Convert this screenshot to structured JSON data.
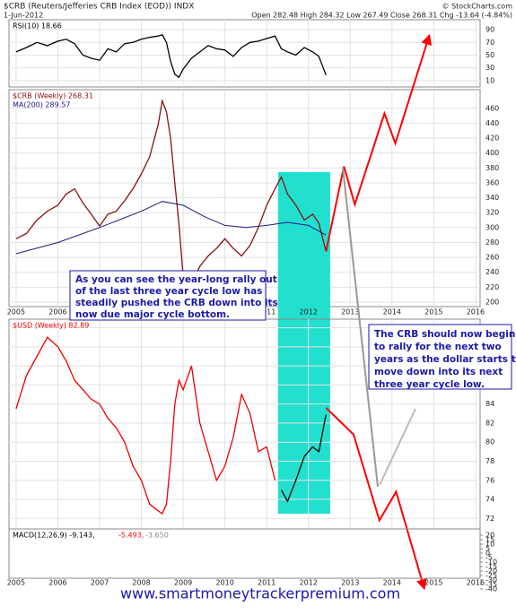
{
  "header": {
    "title": "$CRB (Reuters/Jefferies CRB Index (EOD)) INDX",
    "source": "© StockCharts.com",
    "date": "1-Jun-2012",
    "quote": "Open 282.48 High 284.32 Low 267.49 Close 268.31 Chg -13.64 (-4.84%)"
  },
  "chart_data": [
    {
      "type": "line",
      "xlim": [
        2004.83,
        2016.11
      ],
      "ylim": [
        0,
        100
      ],
      "yticks": [
        90,
        70,
        50,
        30,
        10
      ],
      "grid": true,
      "series": [
        {
          "name": "RSI(10) 18.66",
          "color": "#000000",
          "x": [
            2005.0,
            2005.25,
            2005.5,
            2005.75,
            2006.0,
            2006.2,
            2006.4,
            2006.6,
            2006.8,
            2007.0,
            2007.2,
            2007.4,
            2007.6,
            2007.8,
            2008.0,
            2008.2,
            2008.4,
            2008.5,
            2008.6,
            2008.7,
            2008.8,
            2008.9,
            2009.0,
            2009.2,
            2009.4,
            2009.6,
            2009.8,
            2010.0,
            2010.2,
            2010.4,
            2010.6,
            2010.8,
            2011.0,
            2011.2,
            2011.35,
            2011.5,
            2011.7,
            2011.9,
            2012.1,
            2012.25,
            2012.42
          ],
          "values": [
            55,
            62,
            70,
            65,
            72,
            75,
            68,
            50,
            45,
            42,
            60,
            55,
            68,
            70,
            75,
            78,
            80,
            82,
            70,
            40,
            20,
            15,
            28,
            45,
            55,
            65,
            60,
            58,
            48,
            62,
            70,
            72,
            76,
            80,
            60,
            55,
            50,
            62,
            55,
            48,
            18.66
          ]
        }
      ]
    },
    {
      "type": "line",
      "xlim": [
        2004.83,
        2016.11
      ],
      "ylim": [
        194,
        485
      ],
      "yticks": [
        460,
        440,
        420,
        400,
        380,
        360,
        340,
        320,
        300,
        280,
        260,
        240,
        220,
        200
      ],
      "xticks": [
        2005,
        2006,
        2007,
        2008,
        2009,
        2010,
        2011,
        2012,
        2013,
        2014,
        2015,
        2016
      ],
      "grid": true,
      "highlight": {
        "x": [
          2011.27,
          2012.52
        ],
        "color": "#22e0d0"
      },
      "series": [
        {
          "name": "$CRB (Weekly) 268.31",
          "color": "#8a0f0f",
          "x": [
            2005.0,
            2005.25,
            2005.5,
            2005.75,
            2006.0,
            2006.2,
            2006.4,
            2006.6,
            2006.8,
            2007.0,
            2007.2,
            2007.4,
            2007.6,
            2007.8,
            2008.0,
            2008.2,
            2008.4,
            2008.5,
            2008.6,
            2008.7,
            2008.8,
            2008.9,
            2009.0,
            2009.2,
            2009.4,
            2009.6,
            2009.8,
            2010.0,
            2010.2,
            2010.4,
            2010.6,
            2010.8,
            2011.0,
            2011.2,
            2011.35,
            2011.5,
            2011.7,
            2011.9,
            2012.1,
            2012.25,
            2012.42
          ],
          "values": [
            285,
            292,
            310,
            322,
            330,
            345,
            352,
            333,
            318,
            302,
            318,
            322,
            336,
            352,
            372,
            395,
            438,
            470,
            455,
            420,
            360,
            305,
            235,
            225,
            248,
            262,
            272,
            285,
            272,
            262,
            276,
            300,
            330,
            352,
            368,
            345,
            330,
            310,
            318,
            306,
            268
          ]
        },
        {
          "name": "MA(200) 289.57",
          "color": "#1a1a80",
          "x": [
            2005.0,
            2006.0,
            2007.0,
            2008.0,
            2008.5,
            2009.0,
            2009.5,
            2010.0,
            2010.5,
            2011.0,
            2011.5,
            2012.0,
            2012.42
          ],
          "values": [
            265,
            280,
            300,
            322,
            335,
            330,
            315,
            303,
            300,
            303,
            307,
            303,
            290
          ]
        }
      ],
      "projection": {
        "color": "#ff0000",
        "x": [
          2012.42,
          2012.85,
          2013.11,
          2013.82,
          2014.08,
          2014.89
        ],
        "values": [
          268,
          382,
          331,
          453,
          413,
          557
        ]
      }
    },
    {
      "type": "line",
      "xlim": [
        2004.83,
        2016.11
      ],
      "ylim": [
        70.9,
        92.9
      ],
      "yticks": [
        92,
        90,
        88,
        86,
        84,
        82,
        80,
        78,
        76,
        74,
        72
      ],
      "grid": true,
      "series": [
        {
          "name": "$USD (Weekly) 82.89",
          "color": "#ee0000",
          "highlight_color": "#000000",
          "x": [
            2005.0,
            2005.25,
            2005.5,
            2005.75,
            2006.0,
            2006.2,
            2006.4,
            2006.6,
            2006.8,
            2007.0,
            2007.2,
            2007.4,
            2007.6,
            2007.8,
            2008.0,
            2008.2,
            2008.4,
            2008.5,
            2008.6,
            2008.7,
            2008.8,
            2008.9,
            2009.0,
            2009.2,
            2009.4,
            2009.6,
            2009.8,
            2010.0,
            2010.2,
            2010.4,
            2010.6,
            2010.8,
            2011.0,
            2011.2,
            2011.35,
            2011.5,
            2011.7,
            2011.9,
            2012.1,
            2012.25,
            2012.42
          ],
          "values": [
            83.5,
            87,
            89,
            91,
            90,
            88.5,
            86.5,
            85.5,
            84.5,
            84,
            82.5,
            81.5,
            80,
            77.5,
            76,
            73.5,
            72.8,
            72.5,
            73.5,
            78,
            84,
            86.5,
            85.5,
            88,
            82,
            79,
            76,
            77.5,
            80.5,
            85,
            83,
            79,
            79.5,
            76,
            75,
            73.8,
            76,
            78.5,
            79.5,
            79,
            82.89
          ]
        }
      ],
      "projection": {
        "color": "#ff0000",
        "x": [
          2012.42,
          2013.08,
          2013.7,
          2014.1,
          2014.77
        ],
        "values": [
          83.6,
          80.8,
          71.8,
          74.8,
          64.7
        ]
      }
    },
    {
      "type": "line",
      "xlim": [
        2004.83,
        2016.11
      ],
      "ylim": [
        -40,
        20
      ],
      "yticks": [
        20,
        15,
        10,
        5,
        0,
        -5,
        -10,
        -15,
        -20,
        -25,
        -30,
        -35,
        -40
      ],
      "xticks": [
        2005,
        2006,
        2007,
        2008,
        2009,
        2010,
        2011,
        2012,
        2013,
        2014,
        2015,
        2016
      ],
      "grid": false,
      "series": [
        {
          "name": "MACD(12,26,9) -9.143,",
          "color": "#000000"
        },
        {
          "name": "-5.493,",
          "color": "#ff0000"
        },
        {
          "name": "-3.650",
          "color": "#888888"
        }
      ]
    }
  ],
  "annotations": [
    {
      "lines": [
        "As you can see the year-long rally out",
        "of the last three year cycle low has",
        "steadily pushed the CRB down into its",
        "now due major cycle bottom."
      ]
    },
    {
      "lines": [
        "The CRB should now begin",
        "to rally for the next two",
        "years as the dollar starts to",
        "move down into its next",
        "three year cycle low."
      ]
    }
  ],
  "footer": {
    "url": "www.smartmoneytrackerpremium.com"
  }
}
